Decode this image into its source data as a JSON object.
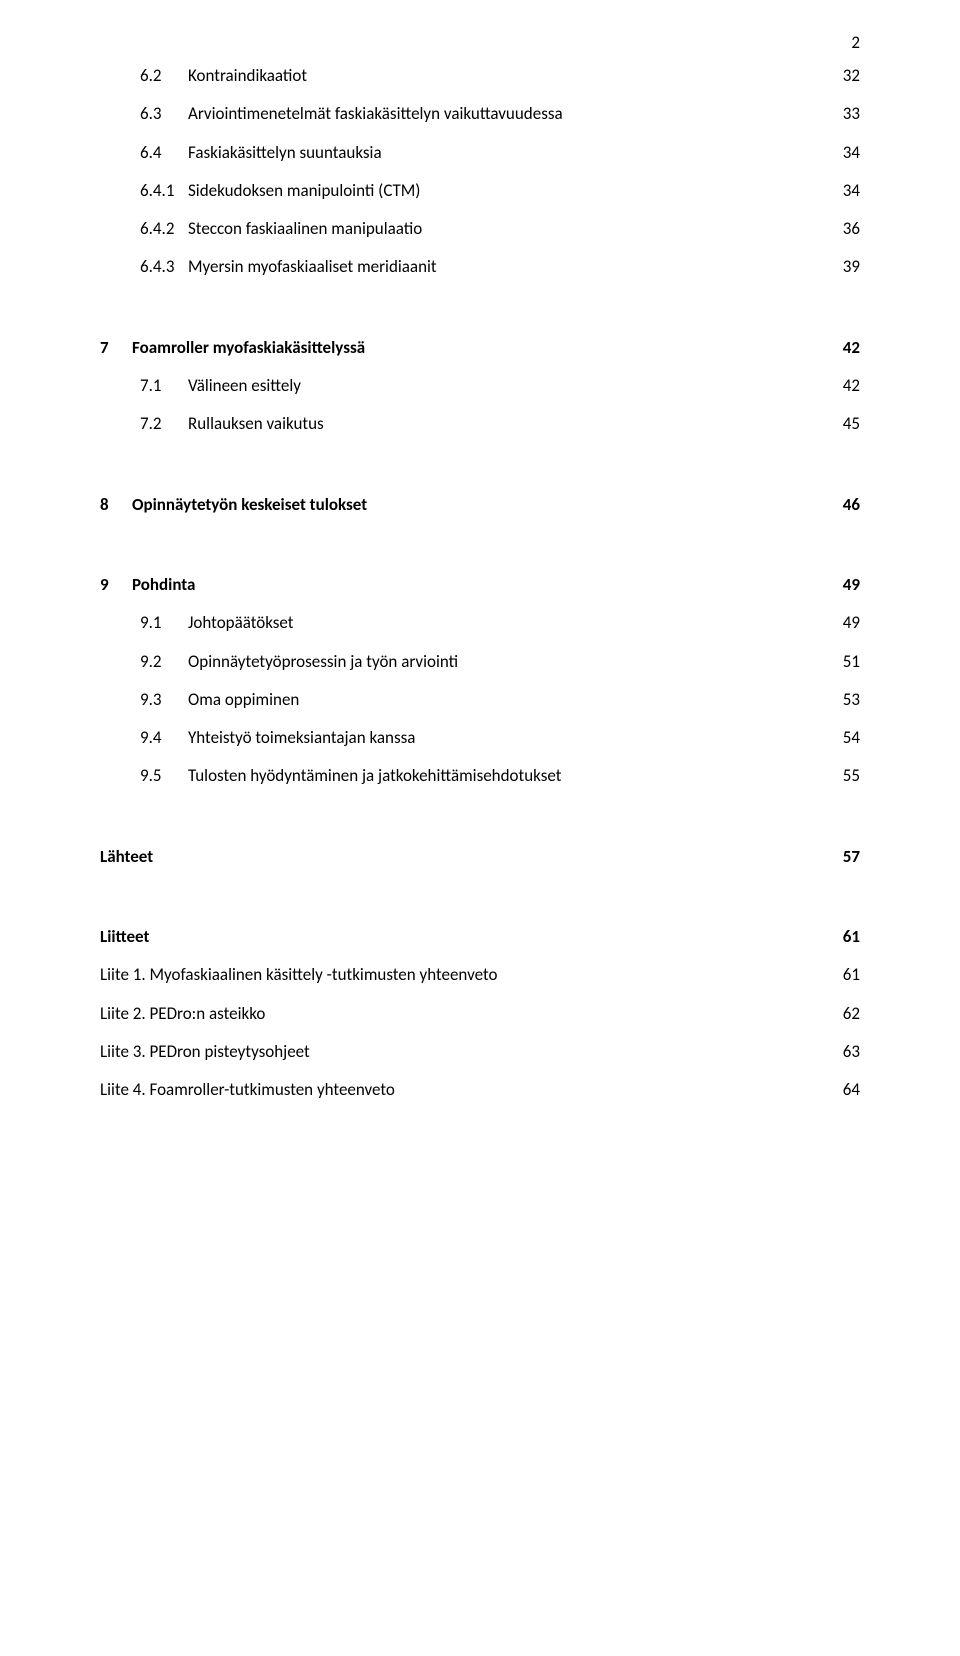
{
  "page_number": "2",
  "typography": {
    "body_font": "Calibri",
    "body_size_pt": 12,
    "bold_weight": 700,
    "text_color": "#000000",
    "background_color": "#ffffff"
  },
  "toc": [
    {
      "num": "6.2",
      "title": "Kontraindikaatiot",
      "page": "32",
      "level": "sub",
      "gap": "none"
    },
    {
      "num": "6.3",
      "title": "Arviointimenetelmät faskiakäsittelyn vaikuttavuudessa",
      "page": "33",
      "level": "sub",
      "gap": "sm"
    },
    {
      "num": "6.4",
      "title": "Faskiakäsittelyn suuntauksia",
      "page": "34",
      "level": "sub",
      "gap": "sm"
    },
    {
      "num": "6.4.1",
      "title": "Sidekudoksen manipulointi (CTM)",
      "page": "34",
      "level": "sub",
      "gap": "sm"
    },
    {
      "num": "6.4.2",
      "title": "Steccon faskiaalinen manipulaatio",
      "page": "36",
      "level": "sub",
      "gap": "sm"
    },
    {
      "num": "6.4.3",
      "title": "Myersin myofaskiaaliset meridiaanit",
      "page": "39",
      "level": "sub",
      "gap": "sm"
    },
    {
      "num": "7",
      "title": "Foamroller myofaskiakäsittelyssä",
      "page": "42",
      "level": "h1",
      "gap": "lg"
    },
    {
      "num": "7.1",
      "title": "Välineen esittely",
      "page": "42",
      "level": "sub",
      "gap": "sm"
    },
    {
      "num": "7.2",
      "title": "Rullauksen vaikutus",
      "page": "45",
      "level": "sub",
      "gap": "sm"
    },
    {
      "num": "8",
      "title": "Opinnäytetyön keskeiset tulokset",
      "page": "46",
      "level": "h1",
      "gap": "lg"
    },
    {
      "num": "9",
      "title": "Pohdinta",
      "page": "49",
      "level": "h1",
      "gap": "lg"
    },
    {
      "num": "9.1",
      "title": "Johtopäätökset",
      "page": "49",
      "level": "sub",
      "gap": "sm"
    },
    {
      "num": "9.2",
      "title": "Opinnäytetyöprosessin ja työn arviointi",
      "page": "51",
      "level": "sub",
      "gap": "sm"
    },
    {
      "num": "9.3",
      "title": "Oma oppiminen",
      "page": "53",
      "level": "sub",
      "gap": "sm"
    },
    {
      "num": "9.4",
      "title": "Yhteistyö toimeksiantajan kanssa",
      "page": "54",
      "level": "sub",
      "gap": "sm"
    },
    {
      "num": "9.5",
      "title": "Tulosten hyödyntäminen ja jatkokehittämisehdotukset",
      "page": "55",
      "level": "sub",
      "gap": "sm"
    },
    {
      "num": "",
      "title": "Lähteet",
      "page": "57",
      "level": "h1-nonum",
      "gap": "lg"
    },
    {
      "num": "",
      "title": "Liitteet",
      "page": "61",
      "level": "h1-nonum",
      "gap": "lg"
    },
    {
      "num": "",
      "title": "Liite 1. Myofaskiaalinen käsittely -tutkimusten yhteenveto",
      "page": "61",
      "level": "plain",
      "gap": "sm"
    },
    {
      "num": "",
      "title": "Liite 2. PEDro:n asteikko",
      "page": "62",
      "level": "plain",
      "gap": "sm"
    },
    {
      "num": "",
      "title": "Liite 3. PEDron pisteytysohjeet",
      "page": "63",
      "level": "plain",
      "gap": "sm"
    },
    {
      "num": "",
      "title": "Liite 4. Foamroller-tutkimusten yhteenveto",
      "page": "64",
      "level": "plain",
      "gap": "sm"
    }
  ]
}
